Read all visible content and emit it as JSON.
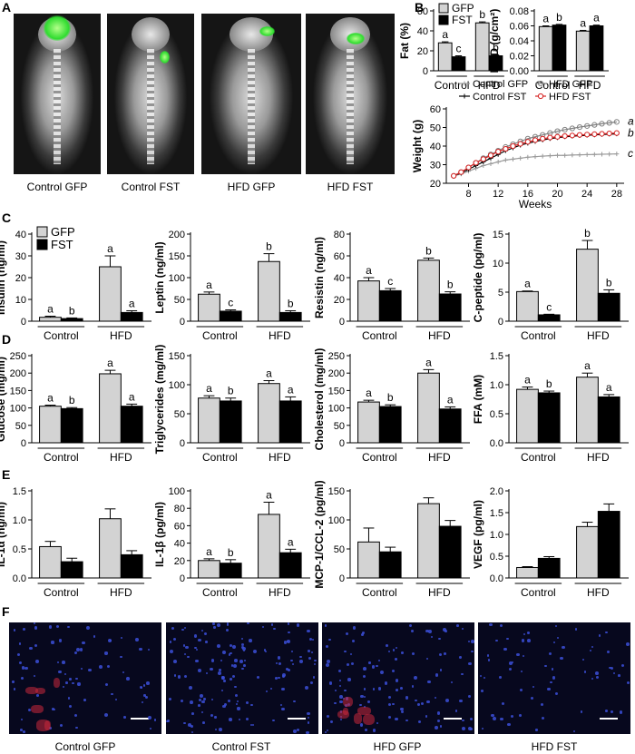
{
  "panels": {
    "A": "A",
    "B": "B",
    "C": "C",
    "D": "D",
    "E": "E",
    "F": "F"
  },
  "xray_captions": [
    "Control GFP",
    "Control FST",
    "HFD GFP",
    "HFD FST"
  ],
  "micro_captions": [
    "Control GFP",
    "Control FST",
    "HFD GFP",
    "HFD FST"
  ],
  "colors": {
    "gfp": "#d3d3d3",
    "fst": "#000000",
    "hfd_fst_line": "#d62020",
    "axis": "#000000"
  },
  "legend": {
    "gfp": "GFP",
    "fst": "FST"
  },
  "chart_data": [
    {
      "id": "fat",
      "type": "bar",
      "ylabel": "Fat (%)",
      "groups": [
        "Control",
        "HFD"
      ],
      "ylim": [
        0,
        60
      ],
      "yticks": [
        0,
        20,
        40,
        60
      ],
      "series": [
        {
          "name": "GFP",
          "values": [
            28,
            48
          ],
          "err": [
            1,
            1
          ]
        },
        {
          "name": "FST",
          "values": [
            14,
            15
          ],
          "err": [
            1,
            1
          ]
        }
      ],
      "letters": [
        [
          "a",
          "b"
        ],
        [
          "c",
          "b"
        ]
      ]
    },
    {
      "id": "bmd",
      "type": "bar",
      "ylabel": "BMD (g/cm²)",
      "groups": [
        "Control",
        "HFD"
      ],
      "ylim": [
        0,
        0.08
      ],
      "yticks": [
        0,
        0.02,
        0.04,
        0.06,
        0.08
      ],
      "series": [
        {
          "name": "GFP",
          "values": [
            0.059,
            0.053
          ],
          "err": [
            0.001,
            0.001
          ]
        },
        {
          "name": "FST",
          "values": [
            0.061,
            0.06
          ],
          "err": [
            0.001,
            0.001
          ]
        }
      ],
      "letters": [
        [
          "a",
          "a"
        ],
        [
          "b",
          "a"
        ]
      ]
    },
    {
      "id": "weight",
      "type": "line",
      "ylabel": "Weight (g)",
      "xlabel": "Weeks",
      "xlim": [
        5,
        29
      ],
      "ylim": [
        20,
        60
      ],
      "xticks": [
        8,
        12,
        16,
        20,
        24,
        28
      ],
      "yticks": [
        20,
        30,
        40,
        50,
        60
      ],
      "x": [
        6,
        7,
        8,
        9,
        10,
        11,
        12,
        13,
        14,
        15,
        16,
        17,
        18,
        19,
        20,
        21,
        22,
        23,
        24,
        25,
        26,
        27,
        28
      ],
      "series": [
        {
          "name": "Control GFP",
          "values": [
            24,
            25,
            26.5,
            28,
            29.5,
            30.5,
            31.5,
            32.5,
            33,
            33.5,
            34,
            34.3,
            34.6,
            34.8,
            35,
            35,
            35.2,
            35.3,
            35.4,
            35.5,
            35.6,
            35.7,
            35.8
          ]
        },
        {
          "name": "Control FST",
          "values": [
            24,
            25.5,
            27.5,
            29.5,
            31.5,
            33.5,
            35.5,
            37.5,
            39,
            40.5,
            41.5,
            42.5,
            43.3,
            44,
            44.5,
            45,
            45.3,
            45.6,
            45.8,
            46,
            46.2,
            46.4,
            46.5
          ]
        },
        {
          "name": "HFD GFP",
          "values": [
            24,
            26,
            28.5,
            31,
            33.5,
            35.5,
            37.5,
            39.5,
            41,
            42.5,
            44,
            45,
            46,
            47,
            48,
            48.8,
            49.5,
            50.2,
            50.8,
            51.4,
            52,
            52.5,
            53
          ]
        },
        {
          "name": "HFD FST",
          "values": [
            24,
            26,
            28.5,
            31,
            33,
            35,
            37,
            38.5,
            40,
            41.2,
            42.3,
            43.2,
            44,
            44.6,
            45,
            45.4,
            45.7,
            46,
            46.2,
            46.4,
            46.6,
            46.8,
            47
          ]
        }
      ],
      "end_letters": [
        "a",
        "b",
        "c"
      ]
    },
    {
      "id": "insulin",
      "type": "bar",
      "ylabel": "Insulin (ng/ml)",
      "groups": [
        "Control",
        "HFD"
      ],
      "ylim": [
        0,
        40
      ],
      "yticks": [
        0,
        10,
        20,
        30,
        40
      ],
      "series": [
        {
          "name": "GFP",
          "values": [
            1.8,
            25
          ],
          "err": [
            0.5,
            5
          ]
        },
        {
          "name": "FST",
          "values": [
            1.2,
            4
          ],
          "err": [
            0.3,
            0.8
          ]
        }
      ],
      "letters": [
        [
          "a",
          "a"
        ],
        [
          "b",
          "a"
        ]
      ]
    },
    {
      "id": "leptin",
      "type": "bar",
      "ylabel": "Leptin (ng/ml)",
      "groups": [
        "Control",
        "HFD"
      ],
      "ylim": [
        0,
        200
      ],
      "yticks": [
        0,
        50,
        100,
        150,
        200
      ],
      "series": [
        {
          "name": "GFP",
          "values": [
            62,
            137
          ],
          "err": [
            5,
            18
          ]
        },
        {
          "name": "FST",
          "values": [
            23,
            20
          ],
          "err": [
            3,
            4
          ]
        }
      ],
      "letters": [
        [
          "a",
          "b"
        ],
        [
          "c",
          "b"
        ]
      ]
    },
    {
      "id": "resistin",
      "type": "bar",
      "ylabel": "Resistin (ng/ml)",
      "groups": [
        "Control",
        "HFD"
      ],
      "ylim": [
        0,
        80
      ],
      "yticks": [
        0,
        20,
        40,
        60,
        80
      ],
      "series": [
        {
          "name": "GFP",
          "values": [
            37,
            56
          ],
          "err": [
            3,
            2
          ]
        },
        {
          "name": "FST",
          "values": [
            28,
            25
          ],
          "err": [
            2,
            2
          ]
        }
      ],
      "letters": [
        [
          "a",
          "b"
        ],
        [
          "c",
          "b"
        ]
      ]
    },
    {
      "id": "cpeptide",
      "type": "bar",
      "ylabel": "C-peptide (pg/ml)",
      "groups": [
        "Control",
        "HFD"
      ],
      "ylim": [
        0,
        15
      ],
      "yticks": [
        0,
        5,
        10,
        15
      ],
      "series": [
        {
          "name": "GFP",
          "values": [
            5.1,
            12.4
          ],
          "err": [
            0.1,
            1.5
          ]
        },
        {
          "name": "FST",
          "values": [
            1.1,
            4.8
          ],
          "err": [
            0.1,
            0.6
          ]
        }
      ],
      "letters": [
        [
          "a",
          "b"
        ],
        [
          "c",
          "b"
        ]
      ]
    },
    {
      "id": "glucose",
      "type": "bar",
      "ylabel": "Glucose (mg/ml)",
      "groups": [
        "Control",
        "HFD"
      ],
      "ylim": [
        0,
        250
      ],
      "yticks": [
        0,
        50,
        100,
        150,
        200,
        250
      ],
      "series": [
        {
          "name": "GFP",
          "values": [
            105,
            198
          ],
          "err": [
            3,
            10
          ]
        },
        {
          "name": "FST",
          "values": [
            98,
            105
          ],
          "err": [
            3,
            6
          ]
        }
      ],
      "letters": [
        [
          "a",
          "a"
        ],
        [
          "b",
          "a"
        ]
      ]
    },
    {
      "id": "triglycerides",
      "type": "bar",
      "ylabel": "Triglycerides (mg/ml)",
      "groups": [
        "Control",
        "HFD"
      ],
      "ylim": [
        0,
        150
      ],
      "yticks": [
        0,
        50,
        100,
        150
      ],
      "series": [
        {
          "name": "GFP",
          "values": [
            77,
            102
          ],
          "err": [
            4,
            5
          ]
        },
        {
          "name": "FST",
          "values": [
            72,
            72
          ],
          "err": [
            5,
            7
          ]
        }
      ],
      "letters": [
        [
          "a",
          "a"
        ],
        [
          "b",
          "a"
        ]
      ]
    },
    {
      "id": "cholesterol",
      "type": "bar",
      "ylabel": "Cholesterol (mg/ml)",
      "groups": [
        "Control",
        "HFD"
      ],
      "ylim": [
        0,
        250
      ],
      "yticks": [
        0,
        50,
        100,
        150,
        200,
        250
      ],
      "series": [
        {
          "name": "GFP",
          "values": [
            117,
            200
          ],
          "err": [
            5,
            10
          ]
        },
        {
          "name": "FST",
          "values": [
            104,
            97
          ],
          "err": [
            5,
            6
          ]
        }
      ],
      "letters": [
        [
          "a",
          "a"
        ],
        [
          "b",
          "a"
        ]
      ]
    },
    {
      "id": "ffa",
      "type": "bar",
      "ylabel": "FFA (mM)",
      "groups": [
        "Control",
        "HFD"
      ],
      "ylim": [
        0,
        1.5
      ],
      "yticks": [
        0,
        0.5,
        1.0,
        1.5
      ],
      "series": [
        {
          "name": "GFP",
          "values": [
            0.92,
            1.13
          ],
          "err": [
            0.04,
            0.07
          ]
        },
        {
          "name": "FST",
          "values": [
            0.86,
            0.79
          ],
          "err": [
            0.03,
            0.04
          ]
        }
      ],
      "letters": [
        [
          "a",
          "a"
        ],
        [
          "b",
          "a"
        ]
      ]
    },
    {
      "id": "il1a",
      "type": "bar",
      "ylabel": "IL-1α (ng/ml)",
      "groups": [
        "Control",
        "HFD"
      ],
      "ylim": [
        0,
        1.5
      ],
      "yticks": [
        0,
        0.5,
        1.0,
        1.5
      ],
      "series": [
        {
          "name": "GFP",
          "values": [
            0.54,
            1.02
          ],
          "err": [
            0.09,
            0.17
          ]
        },
        {
          "name": "FST",
          "values": [
            0.28,
            0.4
          ],
          "err": [
            0.06,
            0.07
          ]
        }
      ],
      "letters": [
        [
          "",
          ""
        ],
        [
          "",
          ""
        ]
      ]
    },
    {
      "id": "il1b",
      "type": "bar",
      "ylabel": "IL-1β (pg/ml)",
      "groups": [
        "Control",
        "HFD"
      ],
      "ylim": [
        0,
        100
      ],
      "yticks": [
        0,
        20,
        40,
        60,
        80,
        100
      ],
      "series": [
        {
          "name": "GFP",
          "values": [
            20,
            73
          ],
          "err": [
            2,
            14
          ]
        },
        {
          "name": "FST",
          "values": [
            17,
            29
          ],
          "err": [
            4,
            4
          ]
        }
      ],
      "letters": [
        [
          "a",
          "a"
        ],
        [
          "b",
          "a"
        ]
      ]
    },
    {
      "id": "mcp1",
      "type": "bar",
      "ylabel": "MCP-1/CCL-2 (pg/ml)",
      "groups": [
        "Control",
        "HFD"
      ],
      "ylim": [
        0,
        150
      ],
      "yticks": [
        0,
        50,
        100,
        150
      ],
      "series": [
        {
          "name": "GFP",
          "values": [
            62,
            128
          ],
          "err": [
            24,
            10
          ]
        },
        {
          "name": "FST",
          "values": [
            45,
            89
          ],
          "err": [
            8,
            10
          ]
        }
      ],
      "letters": [
        [
          "",
          ""
        ],
        [
          "",
          ""
        ]
      ]
    },
    {
      "id": "vegf",
      "type": "bar",
      "ylabel": "VEGF (pg/ml)",
      "groups": [
        "Control",
        "HFD"
      ],
      "ylim": [
        0,
        2.0
      ],
      "yticks": [
        0,
        0.5,
        1.0,
        1.5,
        2.0
      ],
      "series": [
        {
          "name": "GFP",
          "values": [
            0.24,
            1.18
          ],
          "err": [
            0.02,
            0.1
          ]
        },
        {
          "name": "FST",
          "values": [
            0.45,
            1.53
          ],
          "err": [
            0.04,
            0.17
          ]
        }
      ],
      "letters": [
        [
          "",
          ""
        ],
        [
          "",
          ""
        ]
      ]
    }
  ]
}
